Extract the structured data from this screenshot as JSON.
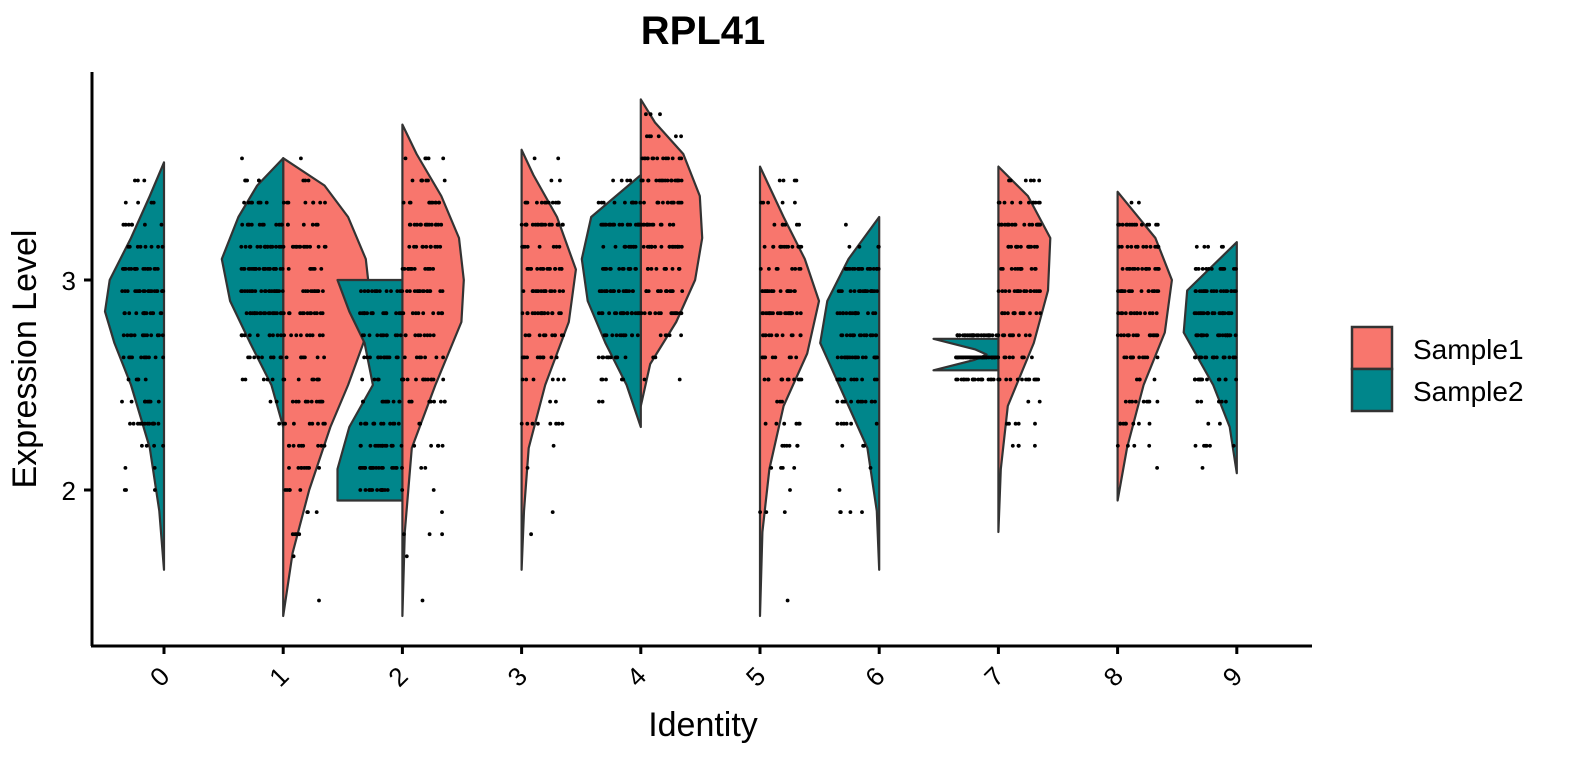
{
  "chart_data": {
    "type": "violin",
    "title": "RPL41",
    "xlabel": "Identity",
    "ylabel": "Expression Level",
    "categories": [
      "0",
      "1",
      "2",
      "3",
      "4",
      "5",
      "6",
      "7",
      "8",
      "9"
    ],
    "ylim": [
      1.27,
      3.97
    ],
    "yticks": [
      2,
      3
    ],
    "legend": {
      "position": "right",
      "entries": [
        {
          "name": "Sample1",
          "color": "#F8766D"
        },
        {
          "name": "Sample2",
          "color": "#00868B"
        }
      ]
    },
    "series": [
      {
        "name": "Sample1",
        "color": "#F8766D",
        "side": "right",
        "groups": [
          {
            "category": "1",
            "min": 1.4,
            "max": 3.58,
            "scale": 1.0,
            "density": [
              [
                1.4,
                0.0
              ],
              [
                1.7,
                0.08
              ],
              [
                2.0,
                0.22
              ],
              [
                2.3,
                0.4
              ],
              [
                2.5,
                0.55
              ],
              [
                2.7,
                0.68
              ],
              [
                2.9,
                0.74
              ],
              [
                3.1,
                0.7
              ],
              [
                3.3,
                0.55
              ],
              [
                3.45,
                0.35
              ],
              [
                3.58,
                0.0
              ]
            ]
          },
          {
            "category": "2",
            "min": 1.4,
            "max": 3.74,
            "scale": 1.0,
            "density": [
              [
                1.4,
                0.0
              ],
              [
                1.8,
                0.02
              ],
              [
                2.2,
                0.08
              ],
              [
                2.5,
                0.28
              ],
              [
                2.8,
                0.5
              ],
              [
                3.0,
                0.52
              ],
              [
                3.2,
                0.48
              ],
              [
                3.4,
                0.33
              ],
              [
                3.6,
                0.12
              ],
              [
                3.74,
                0.0
              ]
            ]
          },
          {
            "category": "3",
            "min": 1.62,
            "max": 3.62,
            "scale": 1.0,
            "density": [
              [
                1.62,
                0.0
              ],
              [
                1.9,
                0.02
              ],
              [
                2.2,
                0.06
              ],
              [
                2.5,
                0.2
              ],
              [
                2.8,
                0.4
              ],
              [
                3.05,
                0.46
              ],
              [
                3.3,
                0.3
              ],
              [
                3.5,
                0.1
              ],
              [
                3.62,
                0.0
              ]
            ]
          },
          {
            "category": "4",
            "min": 2.4,
            "max": 3.86,
            "scale": 1.0,
            "density": [
              [
                2.4,
                0.0
              ],
              [
                2.6,
                0.08
              ],
              [
                2.8,
                0.3
              ],
              [
                3.0,
                0.46
              ],
              [
                3.2,
                0.52
              ],
              [
                3.4,
                0.5
              ],
              [
                3.6,
                0.36
              ],
              [
                3.75,
                0.12
              ],
              [
                3.86,
                0.0
              ]
            ]
          },
          {
            "category": "5",
            "min": 1.4,
            "max": 3.54,
            "scale": 1.0,
            "density": [
              [
                1.4,
                0.0
              ],
              [
                1.8,
                0.02
              ],
              [
                2.1,
                0.08
              ],
              [
                2.4,
                0.2
              ],
              [
                2.65,
                0.4
              ],
              [
                2.9,
                0.5
              ],
              [
                3.1,
                0.38
              ],
              [
                3.3,
                0.2
              ],
              [
                3.54,
                0.0
              ]
            ]
          },
          {
            "category": "7",
            "min": 1.8,
            "max": 3.54,
            "scale": 1.0,
            "density": [
              [
                1.8,
                0.0
              ],
              [
                2.1,
                0.02
              ],
              [
                2.4,
                0.08
              ],
              [
                2.7,
                0.3
              ],
              [
                2.95,
                0.42
              ],
              [
                3.2,
                0.44
              ],
              [
                3.4,
                0.25
              ],
              [
                3.54,
                0.0
              ]
            ]
          },
          {
            "category": "8",
            "min": 1.95,
            "max": 3.42,
            "scale": 1.0,
            "density": [
              [
                1.95,
                0.0
              ],
              [
                2.2,
                0.08
              ],
              [
                2.5,
                0.22
              ],
              [
                2.75,
                0.4
              ],
              [
                3.0,
                0.46
              ],
              [
                3.2,
                0.32
              ],
              [
                3.42,
                0.0
              ]
            ]
          }
        ]
      },
      {
        "name": "Sample2",
        "color": "#00868B",
        "side": "left",
        "groups": [
          {
            "category": "0",
            "min": 1.62,
            "max": 3.56,
            "scale": 1.0,
            "density": [
              [
                1.62,
                0.0
              ],
              [
                1.9,
                0.04
              ],
              [
                2.2,
                0.12
              ],
              [
                2.5,
                0.28
              ],
              [
                2.7,
                0.42
              ],
              [
                2.85,
                0.5
              ],
              [
                3.0,
                0.46
              ],
              [
                3.2,
                0.28
              ],
              [
                3.4,
                0.12
              ],
              [
                3.56,
                0.0
              ]
            ]
          },
          {
            "category": "1",
            "min": 2.3,
            "max": 3.58,
            "scale": 1.0,
            "density": [
              [
                2.3,
                0.0
              ],
              [
                2.5,
                0.1
              ],
              [
                2.7,
                0.28
              ],
              [
                2.9,
                0.45
              ],
              [
                3.1,
                0.52
              ],
              [
                3.3,
                0.38
              ],
              [
                3.45,
                0.22
              ],
              [
                3.58,
                0.0
              ]
            ]
          },
          {
            "category": "2",
            "min": 1.95,
            "max": 3.0,
            "scale": 1.0,
            "density": [
              [
                1.95,
                0.55
              ],
              [
                2.1,
                0.55
              ],
              [
                2.3,
                0.45
              ],
              [
                2.5,
                0.25
              ],
              [
                2.7,
                0.32
              ],
              [
                2.85,
                0.45
              ],
              [
                3.0,
                0.55
              ]
            ]
          },
          {
            "category": "4",
            "min": 2.3,
            "max": 3.5,
            "scale": 1.0,
            "density": [
              [
                2.3,
                0.0
              ],
              [
                2.5,
                0.12
              ],
              [
                2.7,
                0.3
              ],
              [
                2.9,
                0.45
              ],
              [
                3.1,
                0.5
              ],
              [
                3.3,
                0.42
              ],
              [
                3.5,
                0.0
              ]
            ]
          },
          {
            "category": "6",
            "min": 1.62,
            "max": 3.3,
            "scale": 1.0,
            "density": [
              [
                1.62,
                0.0
              ],
              [
                1.9,
                0.02
              ],
              [
                2.2,
                0.1
              ],
              [
                2.45,
                0.3
              ],
              [
                2.7,
                0.5
              ],
              [
                2.9,
                0.44
              ],
              [
                3.1,
                0.26
              ],
              [
                3.3,
                0.0
              ]
            ]
          },
          {
            "category": "7",
            "min": 2.57,
            "max": 2.72,
            "scale": 1.0,
            "density": [
              [
                2.57,
                0.55
              ],
              [
                2.62,
                0.2
              ],
              [
                2.645,
                0.1
              ],
              [
                2.67,
                0.2
              ],
              [
                2.72,
                0.55
              ]
            ]
          },
          {
            "category": "9",
            "min": 2.08,
            "max": 3.18,
            "scale": 1.0,
            "density": [
              [
                2.08,
                0.0
              ],
              [
                2.3,
                0.06
              ],
              [
                2.5,
                0.2
              ],
              [
                2.75,
                0.45
              ],
              [
                2.95,
                0.42
              ],
              [
                3.18,
                0.0
              ]
            ]
          }
        ]
      }
    ]
  }
}
